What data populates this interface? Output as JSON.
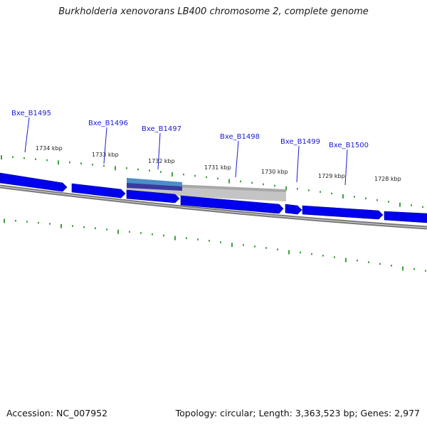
{
  "title": "Burkholderia xenovorans LB400 chromosome 2, complete genome",
  "accession_text": "Accession: NC_007952",
  "stats_text": "Topology: circular; Length: 3,363,523 bp; Genes: 2,977",
  "colors": {
    "gene_fill": "#0000ee",
    "tick": "#118811",
    "backbone": "#777777",
    "selection": "#bbbbbb",
    "highlight": "#4a8fc7",
    "label": "#1a1ad6"
  },
  "gene_labels": [
    "Bxe_B1495",
    "Bxe_B1496",
    "Bxe_B1497",
    "Bxe_B1498",
    "Bxe_B1499",
    "Bxe_B1500"
  ],
  "kbp_labels": [
    "1734 kbp",
    "1733 kbp",
    "1732 kbp",
    "1731 kbp",
    "1730 kbp",
    "1729 kbp",
    "1728 kbp"
  ]
}
